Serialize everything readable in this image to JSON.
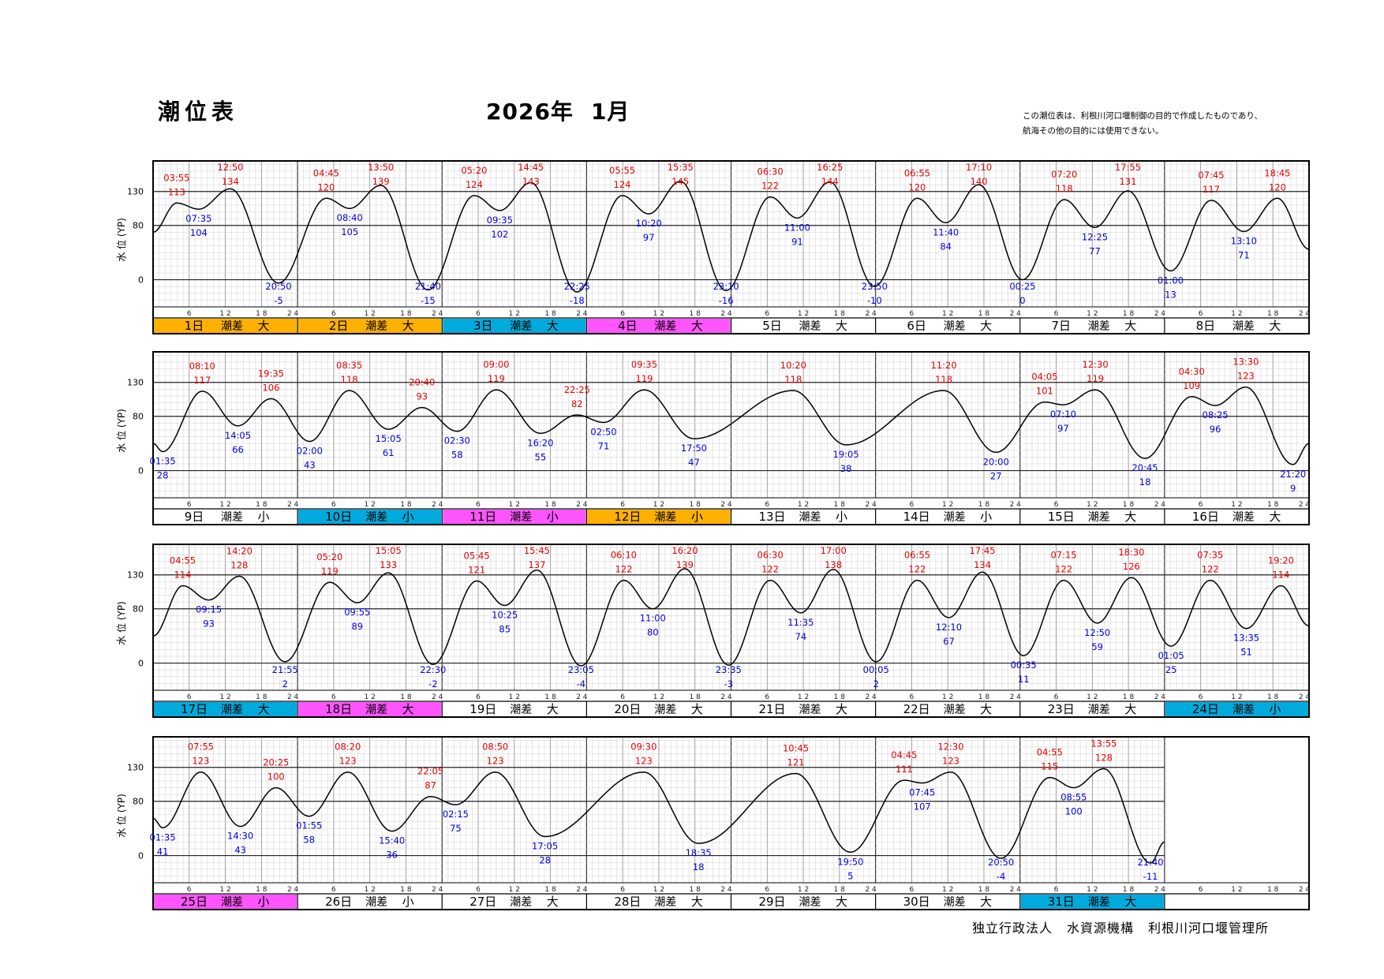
{
  "page": {
    "title": "潮位表",
    "year_month": "2026年",
    "month": "1月",
    "note_line1": "この潮位表は、利根川河口堰制御の目的で作成したものであり、",
    "note_line2": "航海その他の目的には使用できない。",
    "footer_org1": "独立行政法人",
    "footer_org2": "水資源機構",
    "footer_org3": "利根川河口堰管理所"
  },
  "chart_data": {
    "type": "line",
    "ylabel": "水 位 (YP)",
    "yticks": [
      0,
      80,
      130
    ],
    "ylim": [
      -40,
      175
    ],
    "xticks": [
      "6",
      "12",
      "18",
      "24"
    ],
    "label_tide": "潮差",
    "colors": {
      "high": "#e60000",
      "low": "#0000dd",
      "orange": "#ffb000",
      "cyan": "#00aadd",
      "magenta": "#ff55ff",
      "white": "#ffffff"
    },
    "days": [
      {
        "day": "1日",
        "range": "大",
        "color": "orange",
        "start": 70,
        "end": 70,
        "highs": [
          [
            "03:55",
            113
          ],
          [
            "12:50",
            134
          ]
        ],
        "lows": [
          [
            "07:35",
            104
          ],
          [
            "20:50",
            -5
          ]
        ]
      },
      {
        "day": "2日",
        "range": "大",
        "color": "orange",
        "start": 70,
        "end": 70,
        "highs": [
          [
            "04:45",
            120
          ],
          [
            "13:50",
            139
          ]
        ],
        "lows": [
          [
            "08:40",
            105
          ],
          [
            "21:40",
            -15
          ]
        ]
      },
      {
        "day": "3日",
        "range": "大",
        "color": "cyan",
        "start": 70,
        "end": 70,
        "highs": [
          [
            "05:20",
            124
          ],
          [
            "14:45",
            143
          ]
        ],
        "lows": [
          [
            "09:35",
            102
          ],
          [
            "22:25",
            -18
          ]
        ]
      },
      {
        "day": "4日",
        "range": "大",
        "color": "magenta",
        "start": 70,
        "end": 70,
        "highs": [
          [
            "05:55",
            124
          ],
          [
            "15:35",
            145
          ]
        ],
        "lows": [
          [
            "10:20",
            97
          ],
          [
            "23:10",
            -16
          ]
        ]
      },
      {
        "day": "5日",
        "range": "大",
        "color": "white",
        "start": 70,
        "end": 70,
        "highs": [
          [
            "06:30",
            122
          ],
          [
            "16:25",
            144
          ]
        ],
        "lows": [
          [
            "11:00",
            91
          ],
          [
            "23:50",
            -10
          ]
        ]
      },
      {
        "day": "6日",
        "range": "大",
        "color": "white",
        "start": 70,
        "end": 70,
        "highs": [
          [
            "06:55",
            120
          ],
          [
            "17:10",
            140
          ]
        ],
        "lows": [
          [
            "11:40",
            84
          ]
        ]
      },
      {
        "day": "7日",
        "range": "大",
        "color": "white",
        "start": 70,
        "end": 70,
        "highs": [
          [
            "07:20",
            118
          ],
          [
            "17:55",
            131
          ]
        ],
        "lows": [
          [
            "00:25",
            0
          ],
          [
            "12:25",
            77
          ]
        ]
      },
      {
        "day": "8日",
        "range": "大",
        "color": "white",
        "start": 70,
        "end": 45,
        "highs": [
          [
            "07:45",
            117
          ],
          [
            "18:45",
            120
          ]
        ],
        "lows": [
          [
            "01:00",
            13
          ],
          [
            "13:10",
            71
          ]
        ]
      },
      {
        "day": "9日",
        "range": "小",
        "color": "white",
        "start": 40,
        "end": 70,
        "highs": [
          [
            "08:10",
            117
          ],
          [
            "19:35",
            106
          ]
        ],
        "lows": [
          [
            "01:35",
            28
          ],
          [
            "14:05",
            66
          ]
        ]
      },
      {
        "day": "10日",
        "range": "小",
        "color": "cyan",
        "start": 70,
        "end": 70,
        "highs": [
          [
            "08:35",
            118
          ],
          [
            "20:40",
            93
          ]
        ],
        "lows": [
          [
            "02:00",
            43
          ],
          [
            "15:05",
            61
          ]
        ]
      },
      {
        "day": "11日",
        "range": "小",
        "color": "magenta",
        "start": 70,
        "end": 70,
        "highs": [
          [
            "09:00",
            119
          ],
          [
            "22:25",
            82
          ]
        ],
        "lows": [
          [
            "02:30",
            58
          ],
          [
            "16:20",
            55
          ]
        ]
      },
      {
        "day": "12日",
        "range": "小",
        "color": "orange",
        "start": 70,
        "end": 70,
        "highs": [
          [
            "09:35",
            119
          ]
        ],
        "lows": [
          [
            "02:50",
            71
          ],
          [
            "17:50",
            47
          ]
        ]
      },
      {
        "day": "13日",
        "range": "小",
        "color": "white",
        "start": 70,
        "end": 70,
        "highs": [
          [
            "10:20",
            118
          ]
        ],
        "lows": [
          [
            "19:05",
            38
          ]
        ]
      },
      {
        "day": "14日",
        "range": "小",
        "color": "white",
        "start": 70,
        "end": 70,
        "highs": [
          [
            "11:20",
            118
          ]
        ],
        "lows": [
          [
            "20:00",
            27
          ]
        ]
      },
      {
        "day": "15日",
        "range": "大",
        "color": "white",
        "start": 70,
        "end": 70,
        "highs": [
          [
            "04:05",
            101
          ],
          [
            "12:30",
            119
          ]
        ],
        "lows": [
          [
            "07:10",
            97
          ],
          [
            "20:45",
            18
          ]
        ]
      },
      {
        "day": "16日",
        "range": "大",
        "color": "white",
        "start": 70,
        "end": 40,
        "highs": [
          [
            "04:30",
            109
          ],
          [
            "13:30",
            123
          ]
        ],
        "lows": [
          [
            "08:25",
            96
          ],
          [
            "21:20",
            9
          ]
        ]
      },
      {
        "day": "17日",
        "range": "大",
        "color": "cyan",
        "start": 40,
        "end": 70,
        "highs": [
          [
            "04:55",
            114
          ],
          [
            "14:20",
            128
          ]
        ],
        "lows": [
          [
            "09:15",
            93
          ],
          [
            "21:55",
            2
          ]
        ]
      },
      {
        "day": "18日",
        "range": "大",
        "color": "magenta",
        "start": 70,
        "end": 70,
        "highs": [
          [
            "05:20",
            119
          ],
          [
            "15:05",
            133
          ]
        ],
        "lows": [
          [
            "09:55",
            89
          ],
          [
            "22:30",
            -2
          ]
        ]
      },
      {
        "day": "19日",
        "range": "大",
        "color": "white",
        "start": 70,
        "end": 70,
        "highs": [
          [
            "05:45",
            121
          ],
          [
            "15:45",
            137
          ]
        ],
        "lows": [
          [
            "10:25",
            85
          ],
          [
            "23:05",
            -4
          ]
        ]
      },
      {
        "day": "20日",
        "range": "大",
        "color": "white",
        "start": 70,
        "end": 70,
        "highs": [
          [
            "06:10",
            122
          ],
          [
            "16:20",
            139
          ]
        ],
        "lows": [
          [
            "11:00",
            80
          ],
          [
            "23:35",
            -3
          ]
        ]
      },
      {
        "day": "21日",
        "range": "大",
        "color": "white",
        "start": 70,
        "end": 70,
        "highs": [
          [
            "06:30",
            122
          ],
          [
            "17:00",
            138
          ]
        ],
        "lows": [
          [
            "11:35",
            74
          ]
        ]
      },
      {
        "day": "22日",
        "range": "大",
        "color": "white",
        "start": 70,
        "end": 70,
        "highs": [
          [
            "06:55",
            122
          ],
          [
            "17:45",
            134
          ]
        ],
        "lows": [
          [
            "00:05",
            2
          ],
          [
            "12:10",
            67
          ]
        ]
      },
      {
        "day": "23日",
        "range": "大",
        "color": "white",
        "start": 70,
        "end": 70,
        "highs": [
          [
            "07:15",
            122
          ],
          [
            "18:30",
            126
          ]
        ],
        "lows": [
          [
            "00:35",
            11
          ],
          [
            "12:50",
            59
          ]
        ]
      },
      {
        "day": "24日",
        "range": "小",
        "color": "cyan",
        "start": 70,
        "end": 55,
        "highs": [
          [
            "07:35",
            122
          ],
          [
            "19:20",
            114
          ]
        ],
        "lows": [
          [
            "01:05",
            25
          ],
          [
            "13:35",
            51
          ]
        ]
      },
      {
        "day": "25日",
        "range": "小",
        "color": "magenta",
        "start": 55,
        "end": 70,
        "highs": [
          [
            "07:55",
            123
          ],
          [
            "20:25",
            100
          ]
        ],
        "lows": [
          [
            "01:35",
            41
          ],
          [
            "14:30",
            43
          ]
        ]
      },
      {
        "day": "26日",
        "range": "小",
        "color": "white",
        "start": 70,
        "end": 70,
        "highs": [
          [
            "08:20",
            123
          ],
          [
            "22:05",
            87
          ]
        ],
        "lows": [
          [
            "01:55",
            58
          ],
          [
            "15:40",
            36
          ]
        ]
      },
      {
        "day": "27日",
        "range": "大",
        "color": "white",
        "start": 70,
        "end": 70,
        "highs": [
          [
            "08:50",
            123
          ]
        ],
        "lows": [
          [
            "02:15",
            75
          ],
          [
            "17:05",
            28
          ]
        ]
      },
      {
        "day": "28日",
        "range": "大",
        "color": "white",
        "start": 70,
        "end": 70,
        "highs": [
          [
            "09:30",
            123
          ]
        ],
        "lows": [
          [
            "18:35",
            18
          ]
        ]
      },
      {
        "day": "29日",
        "range": "大",
        "color": "white",
        "start": 70,
        "end": 70,
        "highs": [
          [
            "10:45",
            121
          ]
        ],
        "lows": [
          [
            "19:50",
            5
          ]
        ]
      },
      {
        "day": "30日",
        "range": "大",
        "color": "white",
        "start": 70,
        "end": 70,
        "highs": [
          [
            "04:45",
            111
          ],
          [
            "12:30",
            123
          ]
        ],
        "lows": [
          [
            "07:45",
            107
          ],
          [
            "20:50",
            -4
          ]
        ]
      },
      {
        "day": "31日",
        "range": "大",
        "color": "cyan",
        "start": 70,
        "end": 20,
        "highs": [
          [
            "04:55",
            115
          ],
          [
            "13:55",
            128
          ]
        ],
        "lows": [
          [
            "08:55",
            100
          ],
          [
            "21:40",
            -11
          ]
        ]
      }
    ]
  }
}
